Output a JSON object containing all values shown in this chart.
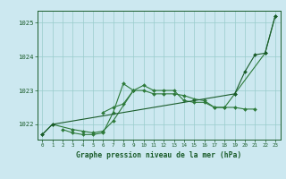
{
  "background_color": "#cce8f0",
  "grid_color": "#99cccc",
  "line_color_dark": "#1a5c2a",
  "line_color_medium": "#2d7a3a",
  "xlabel": "Graphe pression niveau de la mer (hPa)",
  "xlim": [
    -0.5,
    23.5
  ],
  "ylim": [
    1021.55,
    1025.35
  ],
  "yticks": [
    1022,
    1023,
    1024,
    1025
  ],
  "xticks": [
    0,
    1,
    2,
    3,
    4,
    5,
    6,
    7,
    8,
    9,
    10,
    11,
    12,
    13,
    14,
    15,
    16,
    17,
    18,
    19,
    20,
    21,
    22,
    23
  ],
  "series": [
    [
      1021.7,
      1022.0,
      null,
      1021.85,
      1021.8,
      1021.75,
      1021.8,
      1022.1,
      null,
      1023.0,
      1023.15,
      1023.0,
      1023.0,
      1023.0,
      1022.7,
      1022.65,
      1022.65,
      1022.5,
      1022.5,
      1022.9,
      null,
      null,
      1024.1,
      1025.2
    ],
    [
      null,
      null,
      1021.85,
      1021.75,
      1021.7,
      1021.7,
      1021.75,
      1022.35,
      1023.2,
      1023.0,
      null,
      null,
      null,
      null,
      null,
      null,
      null,
      null,
      null,
      null,
      null,
      null,
      null,
      null
    ],
    [
      null,
      null,
      null,
      null,
      null,
      null,
      1022.35,
      1022.5,
      1022.6,
      1023.0,
      1023.0,
      1022.9,
      1022.9,
      1022.9,
      1022.85,
      1022.75,
      1022.7,
      1022.5,
      1022.5,
      1022.5,
      1022.45,
      1022.45,
      null,
      null
    ],
    [
      1021.7,
      1022.0,
      null,
      null,
      null,
      null,
      null,
      null,
      null,
      null,
      null,
      null,
      null,
      null,
      null,
      null,
      null,
      null,
      null,
      1022.9,
      1023.55,
      1024.05,
      1024.1,
      1025.2
    ]
  ]
}
